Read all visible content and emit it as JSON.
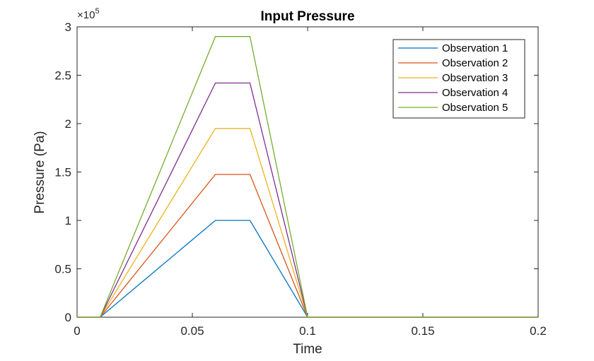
{
  "chart_data": {
    "type": "line",
    "title": "Input Pressure",
    "xlabel": "Time",
    "ylabel": "Pressure (Pa)",
    "xlim": [
      0,
      0.2
    ],
    "ylim": [
      0,
      300000
    ],
    "xticks": [
      0,
      0.05,
      0.1,
      0.15,
      0.2
    ],
    "xtick_labels": [
      "0",
      "0.05",
      "0.1",
      "0.15",
      "0.2"
    ],
    "yticks": [
      0,
      50000,
      100000,
      150000,
      200000,
      250000,
      300000
    ],
    "ytick_labels": [
      "0",
      "0.5",
      "1",
      "1.5",
      "2",
      "2.5",
      "3"
    ],
    "y_exponent": {
      "base": "×10",
      "power": "5"
    },
    "grid": false,
    "legend_position": "top-right",
    "x": [
      0,
      0.01,
      0.06,
      0.075,
      0.1,
      0.2
    ],
    "series": [
      {
        "name": "Observation 1",
        "color": "#0072BD",
        "values": [
          0,
          0,
          100000,
          100000,
          0,
          0
        ]
      },
      {
        "name": "Observation 2",
        "color": "#D95319",
        "values": [
          0,
          0,
          147500,
          147500,
          0,
          0
        ]
      },
      {
        "name": "Observation 3",
        "color": "#EDB120",
        "values": [
          0,
          0,
          195000,
          195000,
          0,
          0
        ]
      },
      {
        "name": "Observation 4",
        "color": "#7E2F8E",
        "values": [
          0,
          0,
          242000,
          242000,
          0,
          0
        ]
      },
      {
        "name": "Observation 5",
        "color": "#77AC30",
        "values": [
          0,
          0,
          290000,
          290000,
          0,
          0
        ]
      }
    ]
  }
}
